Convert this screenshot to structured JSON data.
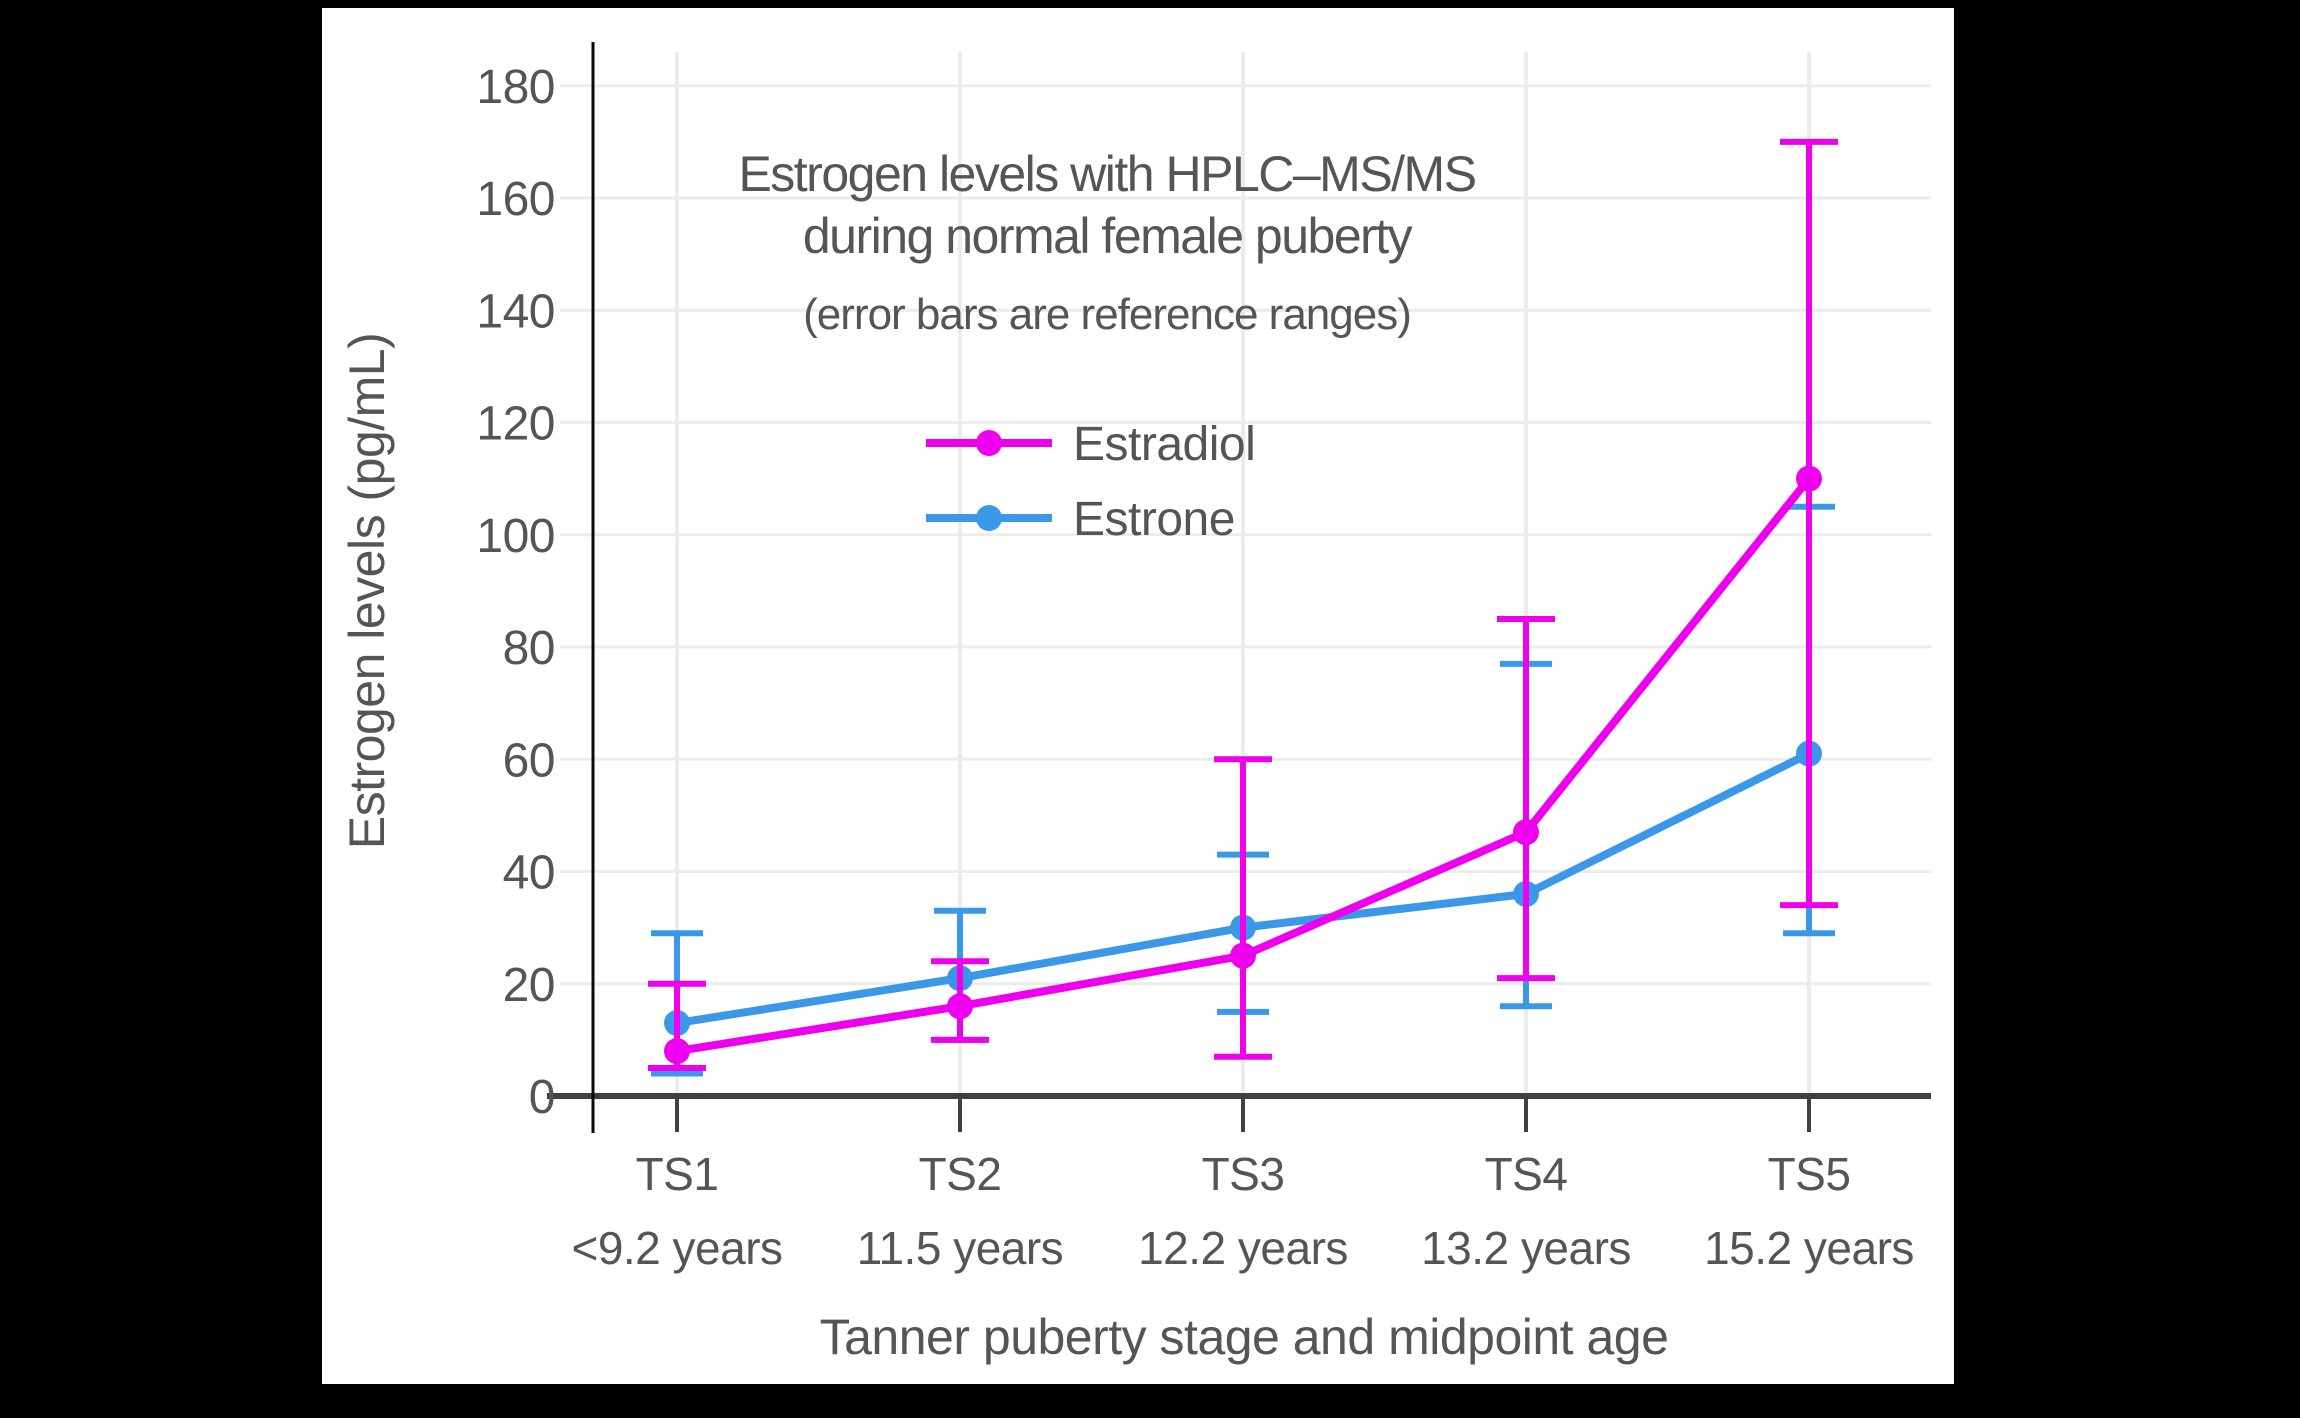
{
  "colors": {
    "background": "#000000",
    "canvas": "#FFFFFF",
    "text": "#555555",
    "grid": "#ECECEC",
    "x_axis": "#404040",
    "y_axis": "#0A0A0A",
    "estradiol": "#EE00EE",
    "estrone": "#3B97E8"
  },
  "chart_data": {
    "type": "line",
    "title_line1": "Estrogen levels with HPLC–MS/MS",
    "title_line2": "during normal female puberty",
    "subtitle": "(error bars are reference ranges)",
    "ylabel": "Estrogen levels (pg/mL)",
    "xlabel": "Tanner puberty stage and midpoint age",
    "categories": [
      "TS1",
      "TS2",
      "TS3",
      "TS4",
      "TS5"
    ],
    "category_sublabels": [
      "<9.2 years",
      "11.5 years",
      "12.2 years",
      "13.2 years",
      "15.2 years"
    ],
    "y_ticks": [
      0,
      20,
      40,
      60,
      80,
      100,
      120,
      140,
      160,
      180
    ],
    "ylim": [
      0,
      187
    ],
    "grid": true,
    "error_bars": "reference ranges",
    "legend_position": "upper-left-inside",
    "series": [
      {
        "name": "Estradiol",
        "color": "#EE00EE",
        "values": [
          8,
          16,
          25,
          47,
          110
        ],
        "error_low": [
          5,
          10,
          7,
          21,
          34
        ],
        "error_high": [
          20,
          24,
          60,
          85,
          170
        ]
      },
      {
        "name": "Estrone",
        "color": "#3B97E8",
        "values": [
          13,
          21,
          30,
          36,
          61
        ],
        "error_low": [
          4,
          10,
          15,
          16,
          29
        ],
        "error_high": [
          29,
          33,
          43,
          77,
          105
        ]
      }
    ]
  }
}
